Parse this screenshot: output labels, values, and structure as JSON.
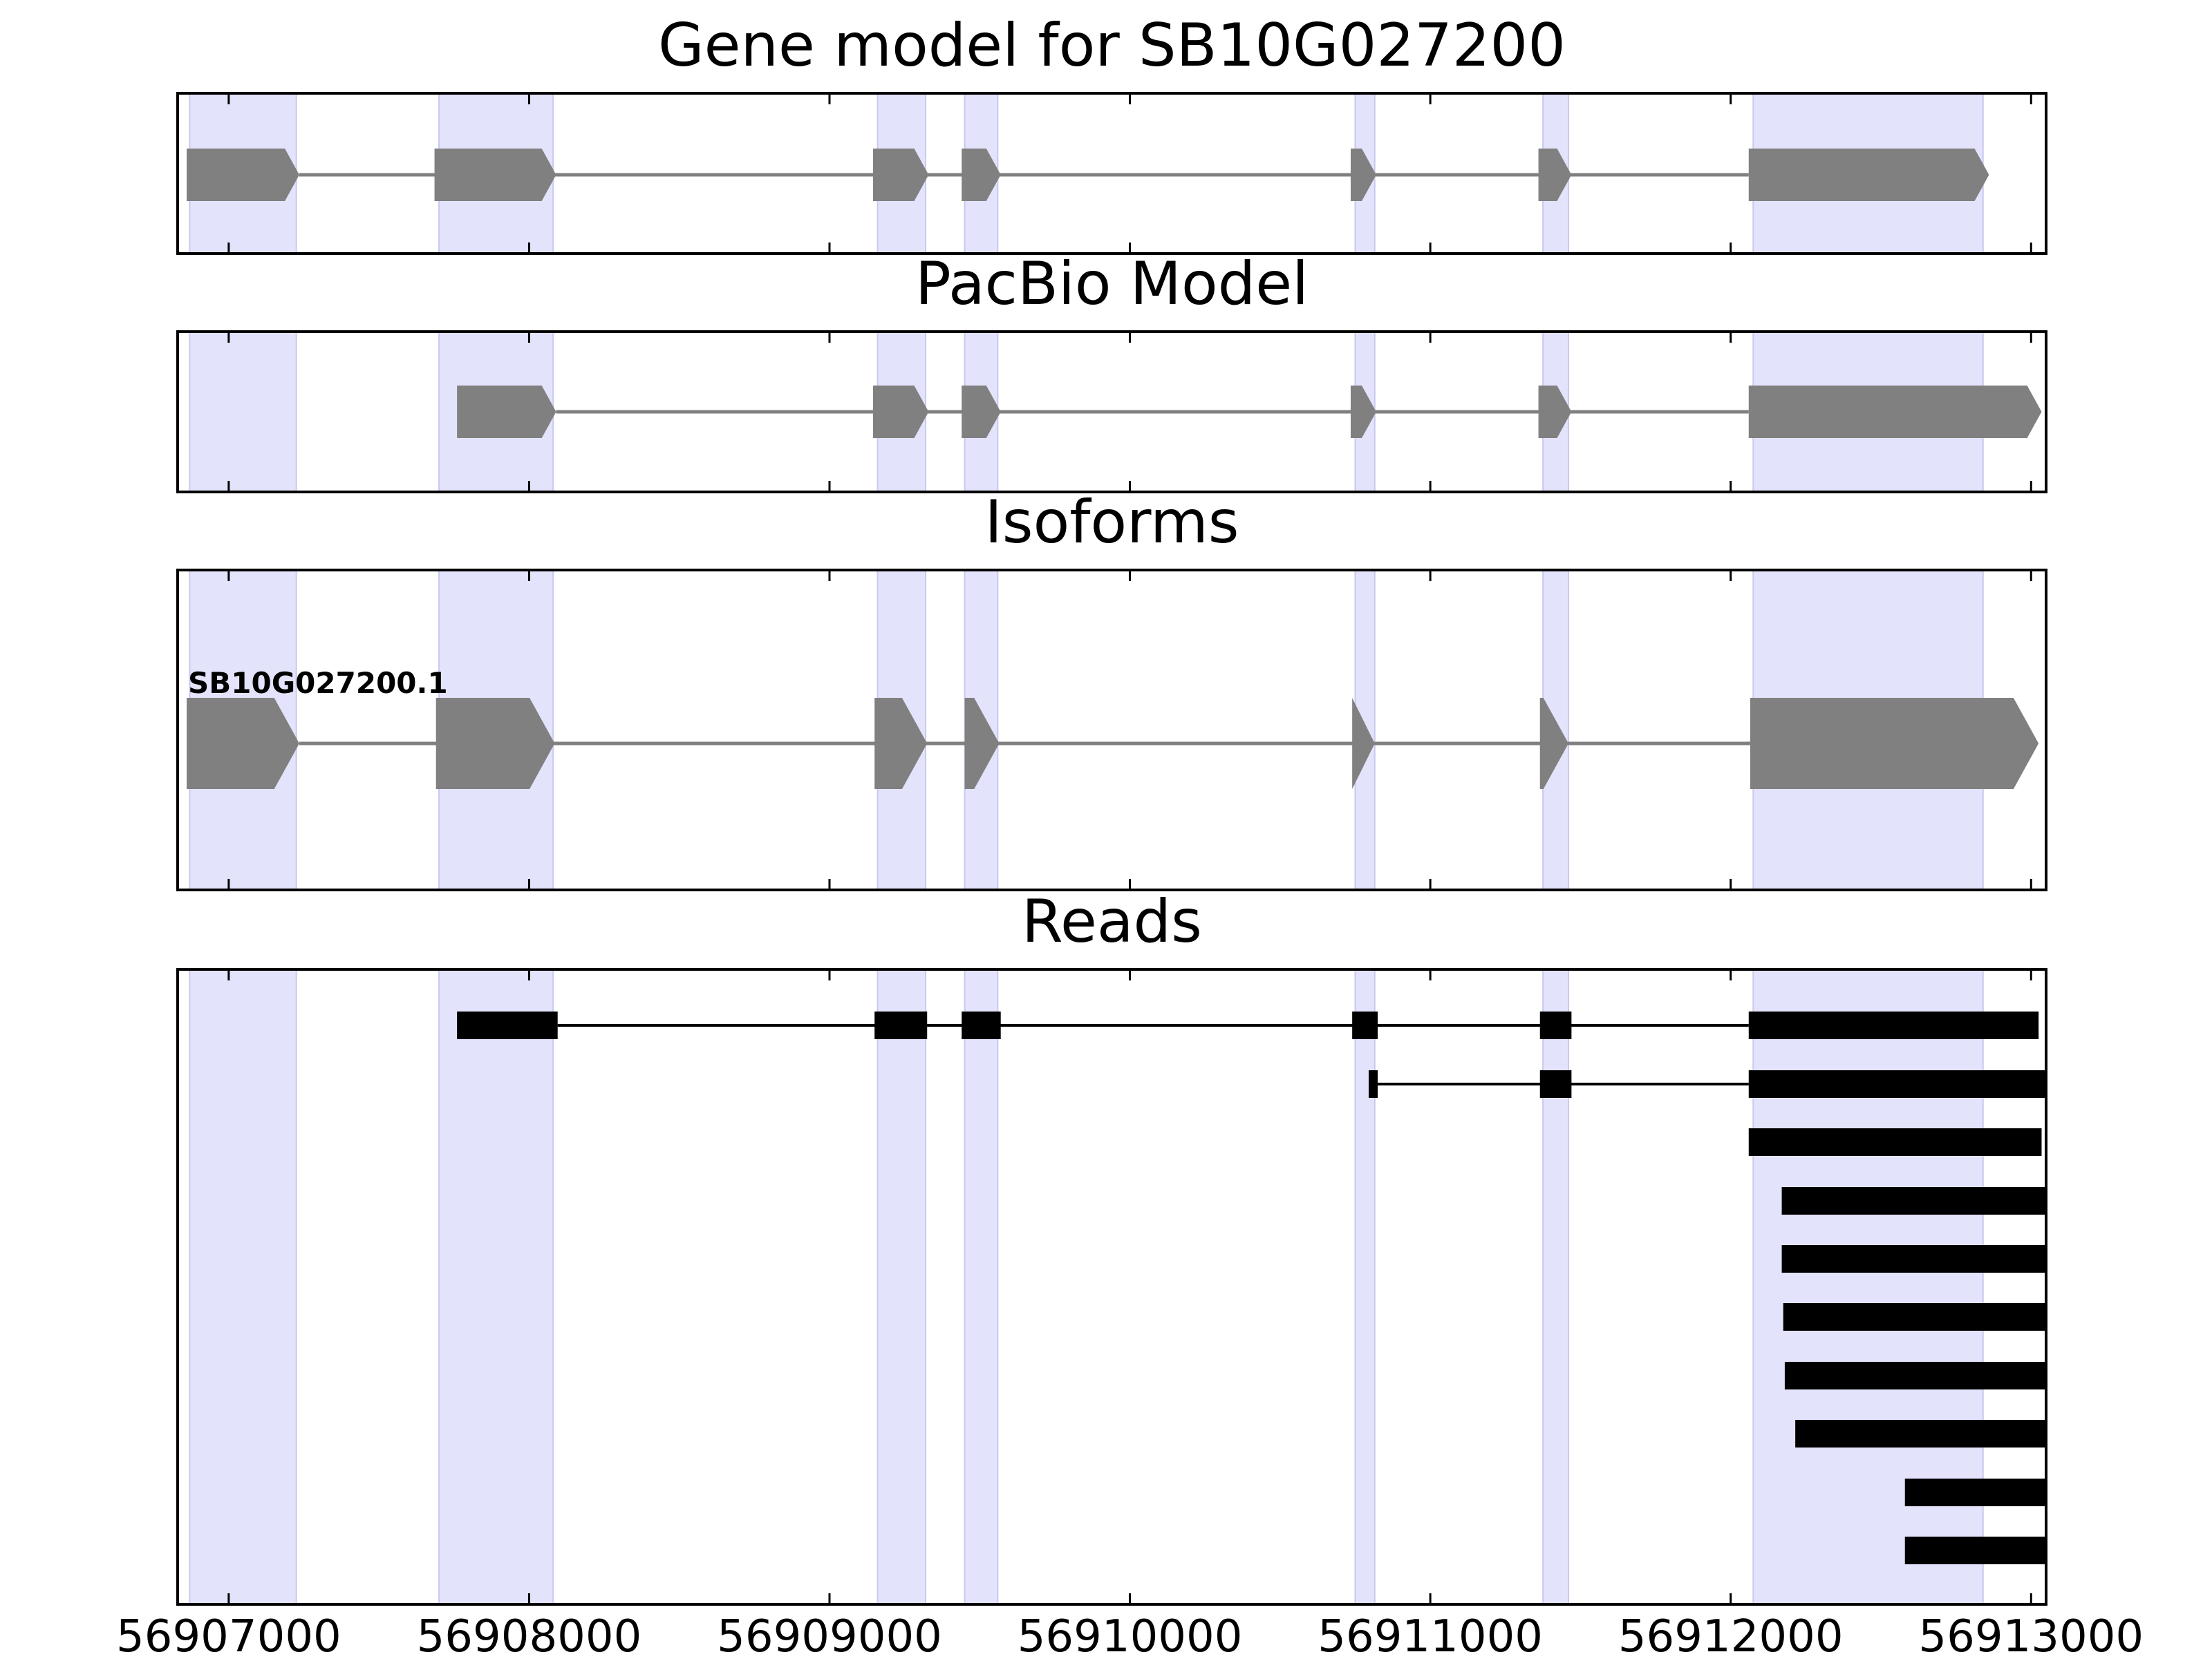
{
  "chart_data": {
    "type": "gene-track",
    "xlim": [
      56906830,
      56913050
    ],
    "xticks": [
      56907000,
      56908000,
      56909000,
      56910000,
      56911000,
      56912000,
      56913000
    ],
    "xtick_labels": [
      "56907000",
      "56908000",
      "56909000",
      "56910000",
      "56911000",
      "56912000",
      "56913000"
    ],
    "highlight_regions": [
      [
        56906870,
        56907225
      ],
      [
        56907700,
        56908080
      ],
      [
        56909160,
        56909320
      ],
      [
        56909450,
        56909560
      ],
      [
        56910750,
        56910815
      ],
      [
        56911375,
        56911460
      ],
      [
        56912075,
        56912840
      ]
    ],
    "colors": {
      "highlight": "#e3e3fb",
      "highlight_edge": "#c9c9ee",
      "model": "#808080",
      "read": "#000000"
    },
    "panels": [
      {
        "title": "Gene model for SB10G027200",
        "style": "arrow",
        "tracks": [
          {
            "label": "",
            "exons": [
              [
                56906860,
                56907235
              ],
              [
                56907685,
                56908090
              ],
              [
                56909145,
                56909330
              ],
              [
                56909440,
                56909570
              ],
              [
                56910735,
                56910820
              ],
              [
                56911360,
                56911470
              ],
              [
                56912060,
                56912860
              ]
            ]
          }
        ]
      },
      {
        "title": "PacBio Model",
        "style": "arrow",
        "tracks": [
          {
            "label": "",
            "exons": [
              [
                56907760,
                56908090
              ],
              [
                56909145,
                56909330
              ],
              [
                56909440,
                56909570
              ],
              [
                56910735,
                56910820
              ],
              [
                56911360,
                56911470
              ],
              [
                56912060,
                56913035
              ]
            ]
          }
        ]
      },
      {
        "title": "Isoforms",
        "style": "arrow",
        "tracks": [
          {
            "label": "SB10G027200.1",
            "exons": [
              [
                56906860,
                56907235
              ],
              [
                56907690,
                56908085
              ],
              [
                56909150,
                56909325
              ],
              [
                56909450,
                56909565
              ],
              [
                56910740,
                56910815
              ],
              [
                56911365,
                56911460
              ],
              [
                56912065,
                56913025
              ]
            ]
          }
        ]
      },
      {
        "title": "Reads",
        "style": "bar",
        "tracks": [
          {
            "label": "",
            "exons": [
              [
                56907760,
                56908095
              ],
              [
                56909150,
                56909325
              ],
              [
                56909440,
                56909570
              ],
              [
                56910740,
                56910825
              ],
              [
                56911365,
                56911470
              ],
              [
                56912060,
                56913025
              ]
            ]
          },
          {
            "label": "",
            "exons": [
              [
                56910795,
                56910825
              ],
              [
                56911365,
                56911470
              ],
              [
                56912060,
                56913050
              ]
            ]
          },
          {
            "label": "",
            "exons": [
              [
                56912060,
                56913035
              ]
            ]
          },
          {
            "label": "",
            "exons": [
              [
                56912170,
                56913050
              ]
            ]
          },
          {
            "label": "",
            "exons": [
              [
                56912170,
                56913050
              ]
            ]
          },
          {
            "label": "",
            "exons": [
              [
                56912175,
                56913050
              ]
            ]
          },
          {
            "label": "",
            "exons": [
              [
                56912180,
                56913050
              ]
            ]
          },
          {
            "label": "",
            "exons": [
              [
                56912215,
                56913050
              ]
            ]
          },
          {
            "label": "",
            "exons": [
              [
                56912580,
                56913050
              ]
            ]
          },
          {
            "label": "",
            "exons": [
              [
                56912580,
                56913050
              ]
            ]
          }
        ]
      }
    ]
  }
}
